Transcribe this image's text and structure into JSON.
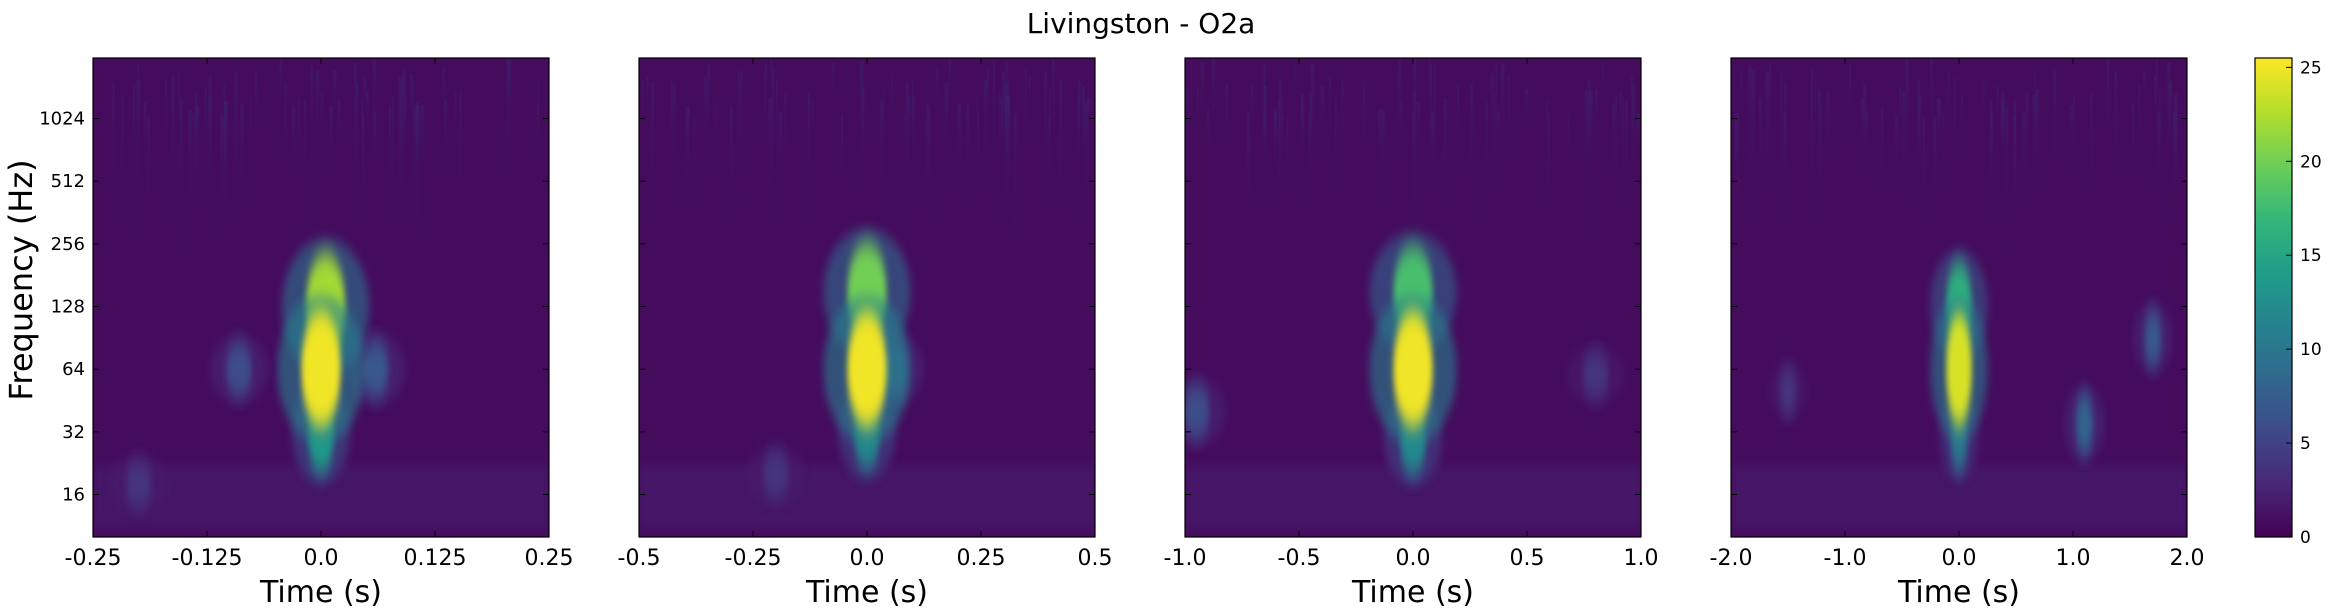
{
  "title": "Livingston - O2a",
  "colormap": [
    "#440154",
    "#482878",
    "#3e4a89",
    "#31688e",
    "#26828e",
    "#1f9e89",
    "#35b779",
    "#6ece58",
    "#b5de2b",
    "#fde725"
  ],
  "chart_data": {
    "type": "heatmap",
    "title": "Livingston - O2a",
    "ylabel": "Frequency (Hz)",
    "yscale": "log2",
    "ylim": [
      10,
      2000
    ],
    "yticks": [
      16,
      32,
      64,
      128,
      256,
      512,
      1024
    ],
    "ytick_labels": [
      "16",
      "32",
      "64",
      "128",
      "256",
      "512",
      "1024"
    ],
    "colorbar": {
      "range": [
        0,
        25.5
      ],
      "ticks": [
        0,
        5,
        10,
        15,
        20,
        25
      ],
      "tick_labels": [
        "0",
        "5",
        "10",
        "15",
        "20",
        "25"
      ]
    },
    "panels": [
      {
        "xlabel": "Time (s)",
        "xlim": [
          -0.25,
          0.25
        ],
        "xticks": [
          -0.25,
          -0.125,
          0.0,
          0.125,
          0.25
        ],
        "xtick_labels": [
          "-0.25",
          "-0.125",
          "0.0",
          "0.125",
          "0.25"
        ],
        "peak_energy": 25.5,
        "blobs": [
          {
            "t": 0.0,
            "f": 64,
            "energy": 25
          },
          {
            "t": 0.005,
            "f": 128,
            "energy": 22
          },
          {
            "t": 0.0,
            "f": 32,
            "energy": 14
          },
          {
            "t": 0.06,
            "f": 64,
            "energy": 7
          },
          {
            "t": -0.09,
            "f": 64,
            "energy": 6
          },
          {
            "t": -0.2,
            "f": 18,
            "energy": 4
          }
        ]
      },
      {
        "xlabel": "Time (s)",
        "xlim": [
          -0.5,
          0.5
        ],
        "xticks": [
          -0.5,
          -0.25,
          0.0,
          0.25,
          0.5
        ],
        "xtick_labels": [
          "-0.5",
          "-0.25",
          "0.0",
          "0.25",
          "0.5"
        ],
        "peak_energy": 25.5,
        "blobs": [
          {
            "t": 0.0,
            "f": 64,
            "energy": 25
          },
          {
            "t": 0.0,
            "f": 150,
            "energy": 20
          },
          {
            "t": 0.0,
            "f": 32,
            "energy": 12
          },
          {
            "t": 0.06,
            "f": 64,
            "energy": 7
          },
          {
            "t": -0.2,
            "f": 20,
            "energy": 4
          }
        ]
      },
      {
        "xlabel": "Time (s)",
        "xlim": [
          -1.0,
          1.0
        ],
        "xticks": [
          -1.0,
          -0.5,
          0.0,
          0.5,
          1.0
        ],
        "xtick_labels": [
          "-1.0",
          "-0.5",
          "0.0",
          "0.5",
          "1.0"
        ],
        "peak_energy": 25.5,
        "blobs": [
          {
            "t": 0.0,
            "f": 64,
            "energy": 25
          },
          {
            "t": 0.0,
            "f": 150,
            "energy": 18
          },
          {
            "t": 0.0,
            "f": 30,
            "energy": 12
          },
          {
            "t": -0.95,
            "f": 40,
            "energy": 6
          },
          {
            "t": 0.8,
            "f": 60,
            "energy": 4
          }
        ]
      },
      {
        "xlabel": "Time (s)",
        "xlim": [
          -2.0,
          2.0
        ],
        "xticks": [
          -2.0,
          -1.0,
          0.0,
          1.0,
          2.0
        ],
        "xtick_labels": [
          "-2.0",
          "-1.0",
          "0.0",
          "1.0",
          "2.0"
        ],
        "peak_energy": 25.5,
        "blobs": [
          {
            "t": 0.0,
            "f": 64,
            "energy": 24
          },
          {
            "t": 0.0,
            "f": 130,
            "energy": 16
          },
          {
            "t": 0.0,
            "f": 30,
            "energy": 10
          },
          {
            "t": 1.1,
            "f": 35,
            "energy": 8
          },
          {
            "t": 1.7,
            "f": 90,
            "energy": 7
          },
          {
            "t": -1.5,
            "f": 50,
            "energy": 4
          }
        ]
      }
    ]
  }
}
